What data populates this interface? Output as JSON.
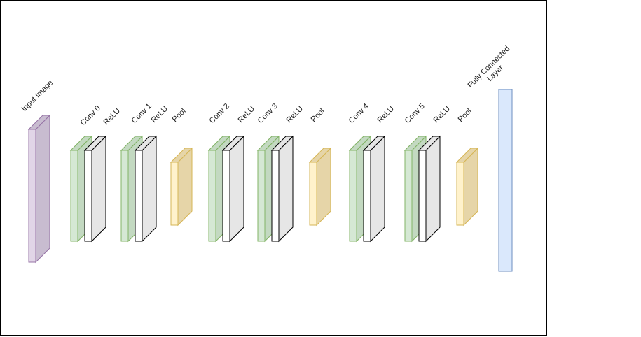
{
  "diagram": {
    "input": {
      "label": "Input Image",
      "color_face": "#e1d5e7",
      "color_side": "#c8bcd0",
      "color_stroke": "#9673a6"
    },
    "colors": {
      "conv_face": "#d5e8d4",
      "conv_side": "#c3d9c1",
      "conv_stroke": "#82b366",
      "relu_face": "#ffffff",
      "relu_side": "#e6e6e6",
      "relu_stroke": "#000000",
      "pool_face": "#fff2cc",
      "pool_side": "#e6d5a8",
      "pool_stroke": "#d6b656",
      "fc_fill": "#dae8fc",
      "fc_stroke": "#6c8ebf"
    },
    "blocks": [
      {
        "conv": "Conv 0",
        "relu": "ReLU"
      },
      {
        "conv": "Conv 1",
        "relu": "ReLU",
        "pool": "Pool"
      },
      {
        "conv": "Conv 2",
        "relu": "ReLU"
      },
      {
        "conv": "Conv 3",
        "relu": "ReLU",
        "pool": "Pool"
      },
      {
        "conv": "Conv 4",
        "relu": "ReLU"
      },
      {
        "conv": "Conv 5",
        "relu": "ReLU",
        "pool": "Pool"
      }
    ],
    "fc": {
      "label_line1": "Fully Connected",
      "label_line2": "Layer"
    }
  }
}
